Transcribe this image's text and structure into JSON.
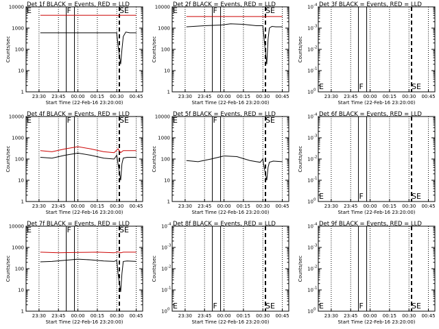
{
  "figure": {
    "panel_titles": [
      "Det 1f BLACK = Events, RED = LLD",
      "Det 2f BLACK = Events, RED = LLD",
      "Det 3f BLACK = Events, RED = LLD",
      "Det 4f BLACK = Events, RED = LLD",
      "Det 5f BLACK = Events, RED = LLD",
      "Det 6f BLACK = Events, RED = LLD",
      "Det 7f BLACK = Events, RED = LLD",
      "Det 8f BLACK = Events, RED = LLD",
      "Det 9f BLACK = Events, RED = LLD"
    ],
    "xlabel": "Start Time (22-Feb-16 23:20:00)",
    "ylabel": "Counts/sec",
    "x_tick_labels": [
      "23:30",
      "23:45",
      "00:00",
      "00:15",
      "00:30",
      "00:45"
    ],
    "linear_tick_labels": [
      "1",
      "10",
      "100",
      "1000",
      "10000"
    ],
    "exp_tick_bases": [
      "10",
      "10",
      "10",
      "10",
      "10"
    ],
    "exp_tick_exponents": [
      "0",
      "-1",
      "-2",
      "-3",
      "-4"
    ],
    "flag_labels": {
      "E": "E",
      "F": "F",
      "SE": "SE"
    }
  },
  "chart_data": [
    {
      "type": "line",
      "title": "Det 1f BLACK = Events, RED = LLD",
      "xlabel": "Start Time (22-Feb-16 23:20:00)",
      "ylabel": "Counts/sec",
      "y_scale": "log",
      "ylim": [
        1,
        10000
      ],
      "x_ticks": [
        "23:30",
        "23:45",
        "00:00",
        "00:15",
        "00:30",
        "00:45"
      ],
      "y_ticks": [
        "1",
        "10",
        "100",
        "1000",
        "10000"
      ],
      "colors": {
        "events": "#000000",
        "lld": "#cc0000"
      },
      "series": [
        {
          "x": [
            "23:31",
            "23:45",
            "23:58",
            "00:05",
            "00:15",
            "00:25",
            "00:30",
            "00:31",
            "00:33",
            "00:34",
            "00:35",
            "00:37",
            "00:40",
            "00:45"
          ],
          "y": [
            4000,
            4000,
            4000,
            4000,
            4000,
            4000,
            4000,
            3800,
            4000,
            4000,
            4000,
            4000,
            4000,
            4000
          ],
          "color": "#cc0000"
        },
        {
          "x": [
            "23:31",
            "23:45",
            "23:58",
            "00:05",
            "00:15",
            "00:25",
            "00:30",
            "00:31",
            "00:33",
            "00:34",
            "00:35",
            "00:37",
            "00:40",
            "00:45"
          ],
          "y": [
            600,
            600,
            600,
            600,
            600,
            600,
            600,
            150,
            20,
            100,
            400,
            650,
            600,
            600
          ],
          "color": "#000000"
        }
      ],
      "markers": {
        "E": "23:21",
        "F": "23:51",
        "SE": "00:32"
      }
    },
    {
      "type": "line",
      "title": "Det 2f BLACK = Events, RED = LLD",
      "xlabel": "Start Time (22-Feb-16 23:20:00)",
      "ylabel": "Counts/sec",
      "y_scale": "log",
      "ylim": [
        1,
        10000
      ],
      "x_ticks": [
        "23:30",
        "23:45",
        "00:00",
        "00:15",
        "00:30",
        "00:45"
      ],
      "y_ticks": [
        "1",
        "10",
        "100",
        "1000",
        "10000"
      ],
      "colors": {
        "events": "#000000",
        "lld": "#cc0000"
      },
      "series": [
        {
          "x": [
            "23:31",
            "23:45",
            "23:58",
            "00:05",
            "00:15",
            "00:25",
            "00:30",
            "00:31",
            "00:33",
            "00:34",
            "00:35",
            "00:37",
            "00:40",
            "00:45"
          ],
          "y": [
            3500,
            3500,
            3500,
            3500,
            3500,
            3500,
            3500,
            3400,
            3500,
            3500,
            3500,
            3500,
            3500,
            3500
          ],
          "color": "#cc0000"
        },
        {
          "x": [
            "23:31",
            "23:45",
            "23:58",
            "00:05",
            "00:15",
            "00:25",
            "00:30",
            "00:31",
            "00:33",
            "00:34",
            "00:35",
            "00:37",
            "00:40",
            "00:45"
          ],
          "y": [
            1150,
            1300,
            1400,
            1600,
            1500,
            1300,
            1300,
            300,
            20,
            300,
            1000,
            1200,
            1150,
            1150
          ],
          "color": "#000000"
        }
      ],
      "markers": {
        "E": "23:21",
        "F": "23:51",
        "SE": "00:32"
      }
    },
    {
      "type": "line",
      "title": "Det 3f BLACK = Events, RED = LLD",
      "xlabel": "Start Time (22-Feb-16 23:20:00)",
      "ylabel": "Counts/sec",
      "y_scale": "log",
      "ylim": [
        1,
        0.0001
      ],
      "x_ticks": [
        "23:30",
        "23:45",
        "00:00",
        "00:15",
        "00:30",
        "00:45"
      ],
      "y_ticks": [
        "10^0",
        "10^-1",
        "10^-2",
        "10^-3",
        "10^-4"
      ],
      "colors": {
        "events": "#000000",
        "lld": "#cc0000"
      },
      "series": [],
      "markers": {
        "E": "23:21",
        "F": "23:51",
        "SE": "00:32"
      }
    },
    {
      "type": "line",
      "title": "Det 4f BLACK = Events, RED = LLD",
      "xlabel": "Start Time (22-Feb-16 23:20:00)",
      "ylabel": "Counts/sec",
      "y_scale": "log",
      "ylim": [
        1,
        10000
      ],
      "x_ticks": [
        "23:30",
        "23:45",
        "00:00",
        "00:15",
        "00:30",
        "00:45"
      ],
      "y_ticks": [
        "1",
        "10",
        "100",
        "1000",
        "10000"
      ],
      "colors": {
        "events": "#000000",
        "lld": "#cc0000"
      },
      "series": [
        {
          "x": [
            "23:31",
            "23:40",
            "23:50",
            "00:00",
            "00:10",
            "00:20",
            "00:28",
            "00:31",
            "00:33",
            "00:35",
            "00:38",
            "00:45"
          ],
          "y": [
            250,
            220,
            300,
            380,
            300,
            220,
            200,
            300,
            200,
            250,
            250,
            250
          ],
          "color": "#cc0000"
        },
        {
          "x": [
            "23:31",
            "23:40",
            "23:50",
            "00:00",
            "00:10",
            "00:20",
            "00:28",
            "00:30",
            "00:31",
            "00:33",
            "00:34",
            "00:35",
            "00:38",
            "00:45"
          ],
          "y": [
            120,
            110,
            150,
            190,
            150,
            110,
            100,
            150,
            60,
            10,
            60,
            110,
            120,
            120
          ],
          "color": "#000000"
        }
      ],
      "markers": {
        "E": "23:21",
        "F": "23:51",
        "SE": "00:32"
      }
    },
    {
      "type": "line",
      "title": "Det 5f BLACK = Events, RED = LLD",
      "xlabel": "Start Time (22-Feb-16 23:20:00)",
      "ylabel": "Counts/sec",
      "y_scale": "log",
      "ylim": [
        1,
        10000
      ],
      "x_ticks": [
        "23:30",
        "23:45",
        "00:00",
        "00:15",
        "00:30",
        "00:45"
      ],
      "y_ticks": [
        "1",
        "10",
        "100",
        "1000",
        "10000"
      ],
      "colors": {
        "events": "#000000",
        "lld": "#cc0000"
      },
      "series": [
        {
          "x": [
            "23:31",
            "23:40",
            "23:50",
            "00:00",
            "00:10",
            "00:20",
            "00:28",
            "00:30",
            "00:31",
            "00:33",
            "00:34",
            "00:35",
            "00:38",
            "00:45"
          ],
          "y": [
            85,
            75,
            100,
            140,
            130,
            85,
            70,
            100,
            40,
            10,
            40,
            70,
            80,
            75
          ],
          "color": "#000000"
        }
      ],
      "markers": {
        "E": "23:21",
        "F": "23:51",
        "SE": "00:32"
      }
    },
    {
      "type": "line",
      "title": "Det 6f BLACK = Events, RED = LLD",
      "xlabel": "Start Time (22-Feb-16 23:20:00)",
      "ylabel": "Counts/sec",
      "y_scale": "log",
      "ylim": [
        1,
        0.0001
      ],
      "x_ticks": [
        "23:30",
        "23:45",
        "00:00",
        "00:15",
        "00:30",
        "00:45"
      ],
      "y_ticks": [
        "10^0",
        "10^-1",
        "10^-2",
        "10^-3",
        "10^-4"
      ],
      "colors": {
        "events": "#000000",
        "lld": "#cc0000"
      },
      "series": [],
      "markers": {
        "E": "23:21",
        "F": "23:51",
        "SE": "00:32"
      }
    },
    {
      "type": "line",
      "title": "Det 7f BLACK = Events, RED = LLD",
      "xlabel": "Start Time (22-Feb-16 23:20:00)",
      "ylabel": "Counts/sec",
      "y_scale": "log",
      "ylim": [
        1,
        10000
      ],
      "x_ticks": [
        "23:30",
        "23:45",
        "00:00",
        "00:15",
        "00:30",
        "00:45"
      ],
      "y_ticks": [
        "1",
        "10",
        "100",
        "1000",
        "10000"
      ],
      "colors": {
        "events": "#000000",
        "lld": "#cc0000"
      },
      "series": [
        {
          "x": [
            "23:31",
            "23:45",
            "00:00",
            "00:15",
            "00:28",
            "00:31",
            "00:33",
            "00:35",
            "00:40",
            "00:45"
          ],
          "y": [
            600,
            560,
            580,
            600,
            560,
            620,
            560,
            600,
            600,
            600
          ],
          "color": "#cc0000"
        },
        {
          "x": [
            "23:31",
            "23:40",
            "23:50",
            "00:00",
            "00:10",
            "00:20",
            "00:28",
            "00:30",
            "00:31",
            "00:33",
            "00:34",
            "00:35",
            "00:38",
            "00:45"
          ],
          "y": [
            210,
            220,
            250,
            280,
            260,
            230,
            220,
            250,
            60,
            8,
            60,
            220,
            230,
            220
          ],
          "color": "#000000"
        }
      ],
      "markers": {
        "E": "23:21",
        "F": "23:51",
        "SE": "00:32"
      }
    },
    {
      "type": "line",
      "title": "Det 8f BLACK = Events, RED = LLD",
      "xlabel": "Start Time (22-Feb-16 23:20:00)",
      "ylabel": "Counts/sec",
      "y_scale": "log",
      "ylim": [
        1,
        0.0001
      ],
      "x_ticks": [
        "23:30",
        "23:45",
        "00:00",
        "00:15",
        "00:30",
        "00:45"
      ],
      "y_ticks": [
        "10^0",
        "10^-1",
        "10^-2",
        "10^-3",
        "10^-4"
      ],
      "colors": {
        "events": "#000000",
        "lld": "#cc0000"
      },
      "series": [],
      "markers": {
        "E": "23:21",
        "F": "23:51",
        "SE": "00:32"
      }
    },
    {
      "type": "line",
      "title": "Det 9f BLACK = Events, RED = LLD",
      "xlabel": "Start Time (22-Feb-16 23:20:00)",
      "ylabel": "Counts/sec",
      "y_scale": "log",
      "ylim": [
        1,
        0.0001
      ],
      "x_ticks": [
        "23:30",
        "23:45",
        "00:00",
        "00:15",
        "00:30",
        "00:45"
      ],
      "y_ticks": [
        "10^0",
        "10^-1",
        "10^-2",
        "10^-3",
        "10^-4"
      ],
      "colors": {
        "events": "#000000",
        "lld": "#cc0000"
      },
      "series": [],
      "markers": {
        "E": "23:21",
        "F": "23:51",
        "SE": "00:32"
      }
    }
  ]
}
